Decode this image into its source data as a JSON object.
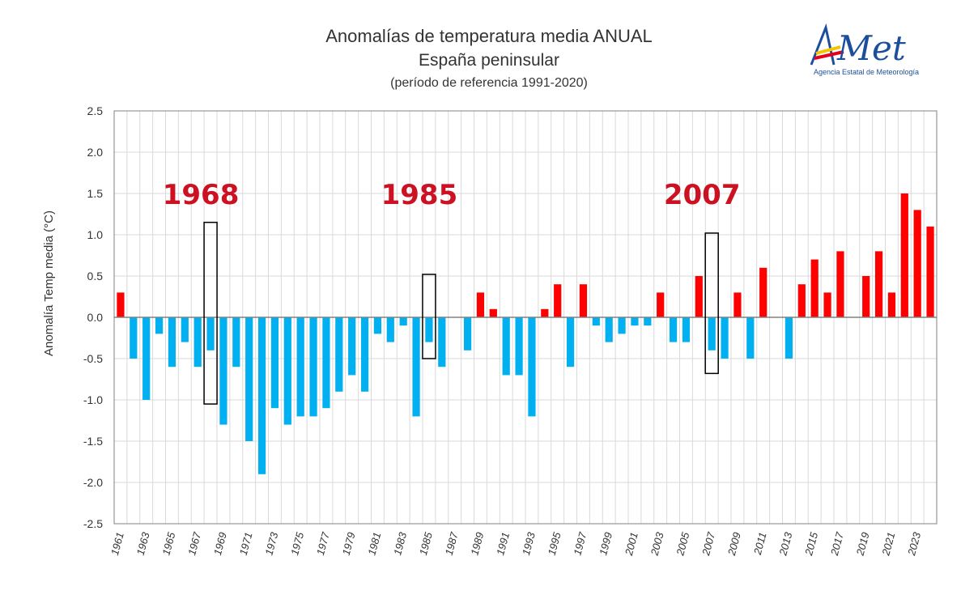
{
  "title": "Anomalías de temperatura media ANUAL",
  "subtitle": "España peninsular",
  "reference_note": "(período de referencia 1991-2020)",
  "logo": {
    "name": "AEMet",
    "subtitle": "Agencia Estatal de Meteorología"
  },
  "colors": {
    "positive": "#ff0000",
    "negative": "#00b0f0",
    "axis": "#808080",
    "grid": "#d9d9d9",
    "annotation": "#cc1122",
    "box": "#000000"
  },
  "chart_data": {
    "type": "bar",
    "title": "Anomalías de temperatura media ANUAL",
    "ylabel": "Anomalía Temp media (°C)",
    "xlabel": "",
    "ylim": [
      -2.5,
      2.5
    ],
    "y_ticks": [
      "2.5",
      "2.0",
      "1.5",
      "1.0",
      "0.5",
      "0.0",
      "-0.5",
      "-1.0",
      "-1.5",
      "-2.0",
      "-2.5"
    ],
    "y_tick_values": [
      2.5,
      2.0,
      1.5,
      1.0,
      0.5,
      0.0,
      -0.5,
      -1.0,
      -1.5,
      -2.0,
      -2.5
    ],
    "x_ticks": [
      "1961",
      "1963",
      "1965",
      "1967",
      "1969",
      "1971",
      "1973",
      "1975",
      "1977",
      "1979",
      "1981",
      "1983",
      "1985",
      "1987",
      "1989",
      "1991",
      "1993",
      "1995",
      "1997",
      "1999",
      "2001",
      "2003",
      "2005",
      "2007",
      "2009",
      "2011",
      "2013",
      "2015",
      "2017",
      "2019",
      "2021",
      "2023"
    ],
    "grid": true,
    "categories": [
      1961,
      1962,
      1963,
      1964,
      1965,
      1966,
      1967,
      1968,
      1969,
      1970,
      1971,
      1972,
      1973,
      1974,
      1975,
      1976,
      1977,
      1978,
      1979,
      1980,
      1981,
      1982,
      1983,
      1984,
      1985,
      1986,
      1987,
      1988,
      1989,
      1990,
      1991,
      1992,
      1993,
      1994,
      1995,
      1996,
      1997,
      1998,
      1999,
      2000,
      2001,
      2002,
      2003,
      2004,
      2005,
      2006,
      2007,
      2008,
      2009,
      2010,
      2011,
      2012,
      2013,
      2014,
      2015,
      2016,
      2017,
      2018,
      2019,
      2020,
      2021,
      2022,
      2023,
      2024
    ],
    "values": [
      0.3,
      -0.5,
      -1.0,
      -0.2,
      -0.6,
      -0.3,
      -0.6,
      -0.4,
      -1.3,
      -0.6,
      -1.5,
      -1.9,
      -1.1,
      -1.3,
      -1.2,
      -1.2,
      -1.1,
      -0.9,
      -0.7,
      -0.9,
      -0.2,
      -0.3,
      -0.1,
      -1.2,
      -0.3,
      -0.6,
      0.0,
      -0.4,
      0.3,
      0.1,
      -0.7,
      -0.7,
      -1.2,
      0.1,
      0.4,
      -0.6,
      0.4,
      -0.1,
      -0.3,
      -0.2,
      -0.1,
      -0.1,
      0.3,
      -0.3,
      -0.3,
      0.5,
      -0.4,
      -0.5,
      0.3,
      -0.5,
      0.6,
      0.0,
      -0.5,
      0.4,
      0.7,
      0.3,
      0.8,
      0.0,
      0.5,
      0.8,
      0.3,
      1.5,
      1.3,
      1.1
    ],
    "annotations": [
      {
        "label": "1968",
        "year": 1968,
        "box_range": [
          -1.05,
          1.15
        ]
      },
      {
        "label": "1985",
        "year": 1985,
        "box_range": [
          -0.5,
          0.52
        ]
      },
      {
        "label": "2007",
        "year": 2007,
        "box_range": [
          -0.68,
          1.02
        ]
      }
    ]
  }
}
